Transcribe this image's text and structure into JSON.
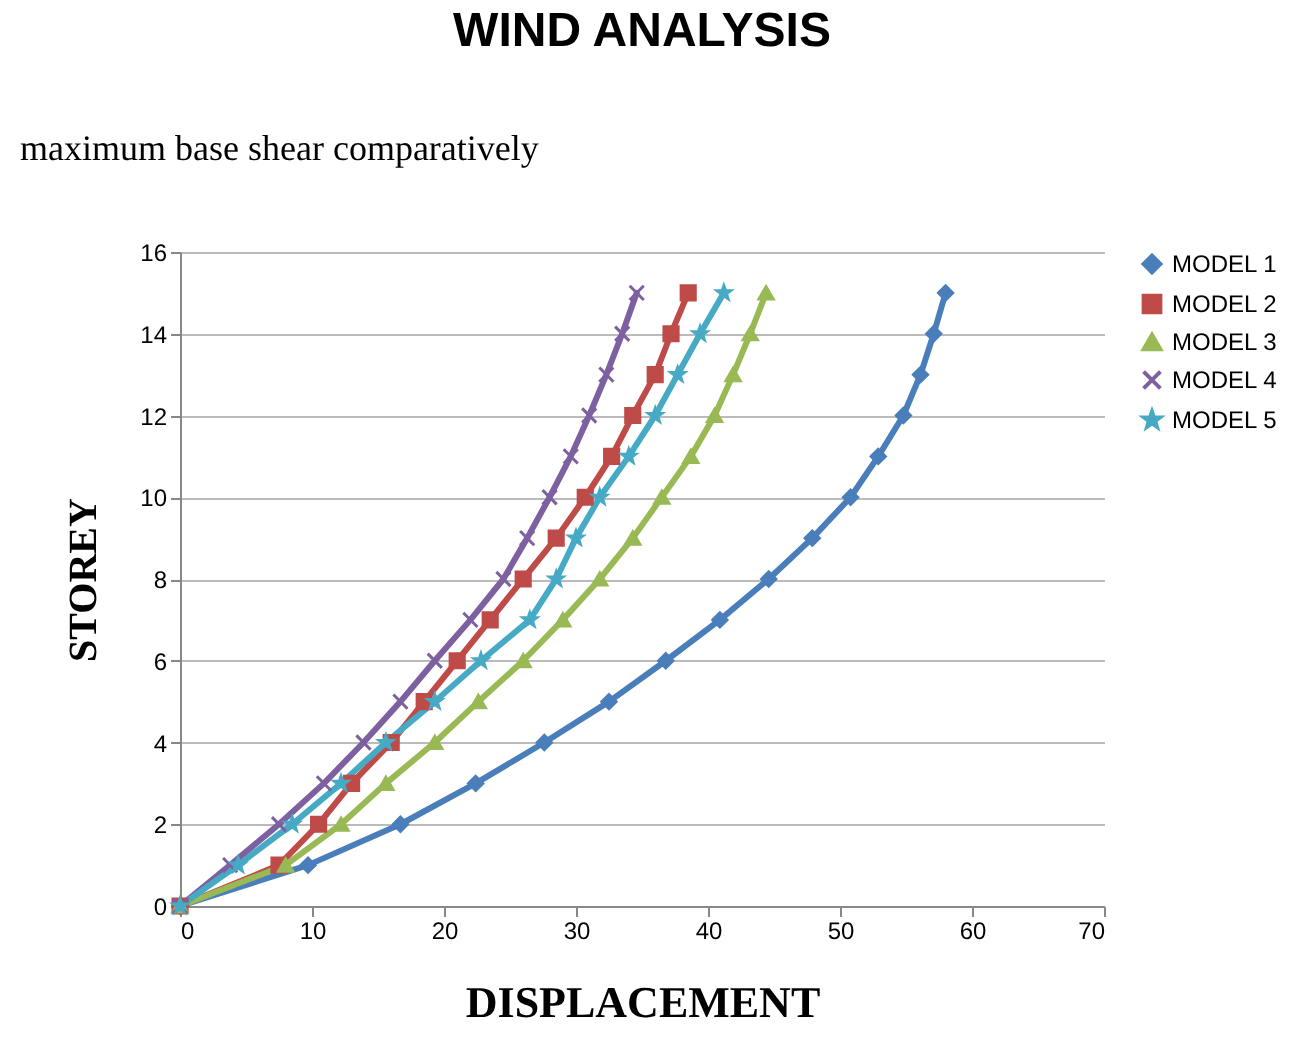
{
  "chart_data": {
    "type": "line",
    "title": "WIND ANALYSIS",
    "xlabel": "DISPLACEMENT",
    "ylabel": "STOREY",
    "annotations": [
      "maximum base shear comparatively"
    ],
    "series": [
      {
        "name": "MODEL 1",
        "color": "#4a7ebb",
        "marker": "diamond",
        "x": [
          0,
          9.7,
          16.7,
          22.4,
          27.6,
          32.5,
          36.8,
          40.9,
          44.6,
          47.9,
          50.8,
          52.9,
          54.8,
          56.1,
          57.1,
          58.0
        ],
        "values": [
          0,
          1,
          2,
          3,
          4,
          5,
          6,
          7,
          8,
          9,
          10,
          11,
          12,
          13,
          14,
          15
        ]
      },
      {
        "name": "MODEL 2",
        "color": "#be4b48",
        "marker": "square",
        "x": [
          0,
          7.5,
          10.5,
          13,
          16,
          18.5,
          21,
          23.5,
          26,
          28.5,
          30.7,
          32.7,
          34.3,
          36,
          37.2,
          38.5
        ],
        "values": [
          0,
          1,
          2,
          3,
          4,
          5,
          6,
          7,
          8,
          9,
          10,
          11,
          12,
          13,
          14,
          15
        ]
      },
      {
        "name": "MODEL 3",
        "color": "#98b954",
        "marker": "triangle",
        "x": [
          0,
          8,
          12.2,
          15.6,
          19.3,
          22.6,
          26,
          29,
          31.8,
          34.3,
          36.5,
          38.7,
          40.5,
          41.9,
          43.2,
          44.4
        ],
        "values": [
          0,
          1,
          2,
          3,
          4,
          5,
          6,
          7,
          8,
          9,
          10,
          11,
          12,
          13,
          14,
          15
        ]
      },
      {
        "name": "MODEL 4",
        "color": "#7d60a0",
        "marker": "cross",
        "x": [
          0,
          3.8,
          7.5,
          10.9,
          13.9,
          16.7,
          19.3,
          22,
          24.5,
          26.3,
          28,
          29.6,
          31,
          32.3,
          33.5,
          34.6
        ],
        "values": [
          0,
          1,
          2,
          3,
          4,
          5,
          6,
          7,
          8,
          9,
          10,
          11,
          12,
          13,
          14,
          15
        ]
      },
      {
        "name": "MODEL 5",
        "color": "#46aac5",
        "marker": "star",
        "x": [
          0,
          4.4,
          8.5,
          12.2,
          15.6,
          19.3,
          22.8,
          26.5,
          28.5,
          30,
          31.8,
          34,
          36,
          37.7,
          39.4,
          41.2
        ],
        "values": [
          0,
          1,
          2,
          3,
          4,
          5,
          6,
          7,
          8,
          9,
          10,
          11,
          12,
          13,
          14,
          15
        ]
      }
    ],
    "xlim": [
      0,
      70
    ],
    "xticks": [
      0,
      10,
      20,
      30,
      40,
      50,
      60,
      70
    ],
    "ylim": [
      0,
      16
    ],
    "yticks": [
      0,
      2,
      4,
      6,
      8,
      10,
      12,
      14,
      16
    ],
    "grid": "y",
    "legend": "right",
    "line_style": "solid"
  }
}
